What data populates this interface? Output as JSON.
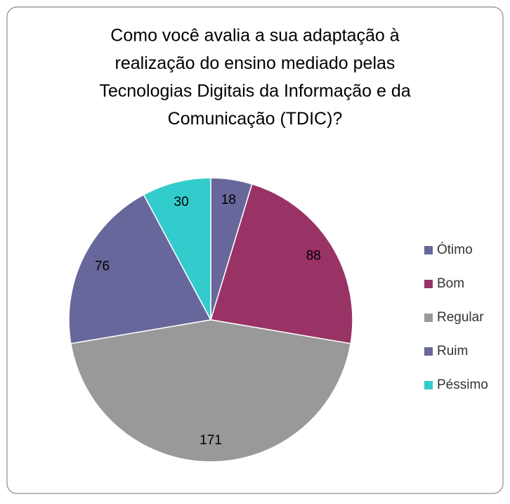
{
  "chart_data": {
    "type": "pie",
    "title": [
      "Como você avalia a sua adaptação à",
      "realização do ensino mediado pelas",
      "Tecnologias Digitais da Informação e da",
      "Comunicação (TDIC)?"
    ],
    "categories": [
      "Ótimo",
      "Bom",
      "Regular",
      "Ruim",
      "Péssimo"
    ],
    "values": [
      18,
      88,
      171,
      76,
      30
    ],
    "colors": [
      "#67679b",
      "#993366",
      "#999999",
      "#67679b",
      "#33cccc"
    ],
    "legend": "right"
  }
}
